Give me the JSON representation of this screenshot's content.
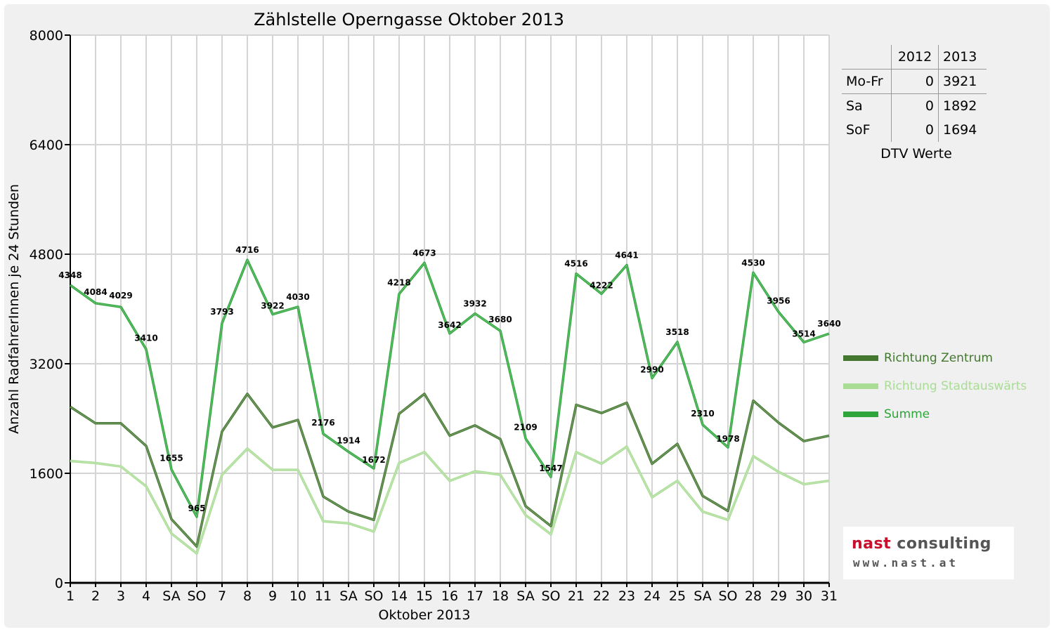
{
  "chart_data": {
    "type": "line",
    "title": "Zählstelle Operngasse Oktober 2013",
    "xlabel": "Oktober 2013",
    "ylabel": "Anzahl RadfahrerInnen je 24 Stunden",
    "ylim": [
      0,
      8000
    ],
    "yticks": [
      0,
      1600,
      3200,
      4800,
      6400,
      8000
    ],
    "grid": true,
    "legend_position": "right",
    "categories": [
      "1",
      "2",
      "3",
      "4",
      "SA",
      "SO",
      "7",
      "8",
      "9",
      "10",
      "11",
      "SA",
      "SO",
      "14",
      "15",
      "16",
      "17",
      "18",
      "SA",
      "SO",
      "21",
      "22",
      "23",
      "24",
      "25",
      "SA",
      "SO",
      "28",
      "29",
      "30",
      "31"
    ],
    "category_colors": {
      "SO": "#ff0000"
    },
    "series": [
      {
        "name": "Richtung Zentrum",
        "color": "#43772f",
        "labels": false,
        "values": [
          2570,
          2330,
          2330,
          2000,
          930,
          530,
          2210,
          2760,
          2270,
          2380,
          1260,
          1040,
          920,
          2470,
          2760,
          2150,
          2300,
          2100,
          1120,
          830,
          2600,
          2480,
          2630,
          1740,
          2030,
          1270,
          1050,
          2660,
          2340,
          2070,
          2150
        ]
      },
      {
        "name": "Richtung Stadtauswärts",
        "color": "#a9dc94",
        "labels": false,
        "values": [
          1780,
          1750,
          1700,
          1410,
          720,
          430,
          1580,
          1960,
          1650,
          1650,
          900,
          870,
          750,
          1750,
          1910,
          1490,
          1630,
          1580,
          990,
          710,
          1910,
          1740,
          1990,
          1250,
          1490,
          1040,
          920,
          1850,
          1620,
          1440,
          1490
        ]
      },
      {
        "name": "Summe",
        "color": "#2da53a",
        "labels": true,
        "values": [
          4348,
          4084,
          4029,
          3410,
          1655,
          965,
          3793,
          4716,
          3922,
          4030,
          2176,
          1914,
          1672,
          4218,
          4673,
          3642,
          3932,
          3680,
          2109,
          1547,
          4516,
          4222,
          4641,
          2990,
          3518,
          2310,
          1978,
          4530,
          3956,
          3514,
          3640
        ]
      }
    ]
  },
  "dtv_table": {
    "headers": [
      "",
      "2012",
      "2013"
    ],
    "rows": [
      {
        "label": "Mo-Fr",
        "v2012": "0",
        "v2013": "3921"
      },
      {
        "label": "Sa",
        "v2012": "0",
        "v2013": "1892"
      },
      {
        "label": "SoF",
        "v2012": "0",
        "v2013": "1694"
      }
    ],
    "caption": "DTV Werte"
  },
  "logo": {
    "word1": "nast",
    "word2": "consulting",
    "web": "www.nast.at",
    "color1": "#c8102e",
    "color2": "#555555"
  }
}
